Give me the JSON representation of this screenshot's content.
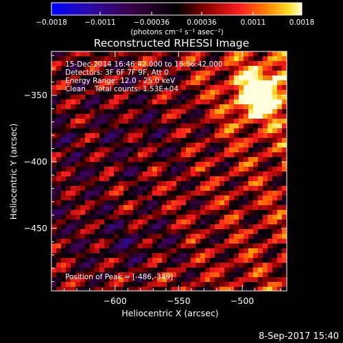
{
  "chart_data": {
    "type": "heatmap",
    "title": "Reconstructed RHESSI Image",
    "xlabel": "Heliocentric X (arcsec)",
    "ylabel": "Heliocentric Y (arcsec)",
    "xlim": [
      -650,
      -465
    ],
    "ylim": [
      -497,
      -317
    ],
    "x_ticks": [
      {
        "value": -600,
        "label": "−600"
      },
      {
        "value": -550,
        "label": "−550"
      },
      {
        "value": -500,
        "label": "−500"
      }
    ],
    "y_ticks": [
      {
        "value": -350,
        "label": "−350"
      },
      {
        "value": -400,
        "label": "−400"
      },
      {
        "value": -450,
        "label": "−450"
      }
    ],
    "colorbar": {
      "min": -0.0018,
      "max": 0.0018,
      "unit_label": "(photons cm⁻² s⁻¹ asec⁻²)",
      "ticks": [
        {
          "value": -0.0018,
          "label": "−0.0018"
        },
        {
          "value": -0.0011,
          "label": "−0.0011"
        },
        {
          "value": -0.00036,
          "label": "−0.00036"
        },
        {
          "value": 0.00036,
          "label": "0.00036"
        },
        {
          "value": 0.0011,
          "label": "0.0011"
        },
        {
          "value": 0.0018,
          "label": "0.0018"
        }
      ]
    },
    "peak": {
      "x": -486,
      "y": -349,
      "value": 0.0018
    },
    "annotations": {
      "time_range": "15-Dec-2014 16:46:42.000 to 16:56:42.000",
      "detectors": "Detectors: 3F 6F 7F 9F, Att 0",
      "energy": "Energy Range: 12.0 - 25.0 keV",
      "clean": "Clean    Total counts: 1.53E+04",
      "peak_text": "Position of Peak = [-486,-349]"
    },
    "grid": false,
    "legend": "colorbar-top"
  },
  "footer": {
    "timestamp": "8-Sep-2017 15:40"
  },
  "colors": {
    "background": "#000000",
    "text": "#ffffff",
    "colormap": [
      "#0000ff",
      "#4a0fa0",
      "#3c0046",
      "#000000",
      "#8c0000",
      "#ff1e1e",
      "#ff7800",
      "#ffdc28",
      "#ffffdc"
    ]
  }
}
